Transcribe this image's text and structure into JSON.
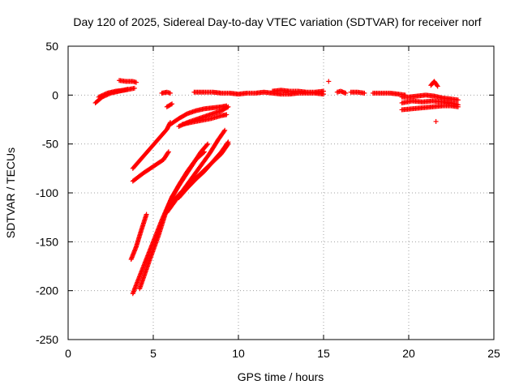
{
  "chart_data": {
    "type": "scatter",
    "title": "Day 120 of 2025, Sidereal Day-to-day VTEC variation (SDTVAR) for receiver norf",
    "xlabel": "GPS time / hours",
    "ylabel": "SDTVAR / TECUs",
    "xlim": [
      0,
      25
    ],
    "ylim": [
      -250,
      50
    ],
    "xticks": [
      0,
      5,
      10,
      15,
      20,
      25
    ],
    "yticks": [
      -250,
      -200,
      -150,
      -100,
      -50,
      0,
      50
    ],
    "grid": true,
    "marker": "+",
    "color": "#ff0000",
    "segments": [
      {
        "x": [
          1.6,
          2.0,
          2.5,
          3.0,
          3.5
        ],
        "y": [
          -8,
          -2,
          2,
          4,
          6
        ]
      },
      {
        "x": [
          1.8,
          2.3,
          2.8,
          3.3,
          3.9
        ],
        "y": [
          -2,
          2,
          4,
          5,
          7
        ]
      },
      {
        "x": [
          3.0,
          3.4,
          3.8,
          4.0
        ],
        "y": [
          15,
          14,
          14,
          13
        ]
      },
      {
        "x": [
          5.5,
          5.8,
          6.0
        ],
        "y": [
          2,
          3,
          2
        ]
      },
      {
        "x": [
          5.8,
          6.1
        ],
        "y": [
          -12,
          -9
        ]
      },
      {
        "x": [
          7.4,
          8.0,
          8.5,
          9.0,
          9.5,
          10.0,
          10.5,
          11.0,
          11.5,
          12.0,
          12.5,
          13.0,
          13.5,
          14.0,
          14.5,
          15.0
        ],
        "y": [
          3,
          3,
          3,
          2,
          2,
          1,
          2,
          2,
          3,
          2,
          1,
          1,
          2,
          2,
          2,
          1
        ]
      },
      {
        "x": [
          12.0,
          12.5,
          13.0,
          13.5,
          14.0,
          14.5,
          15.0
        ],
        "y": [
          4,
          5,
          4,
          4,
          3,
          3,
          4
        ]
      },
      {
        "x": [
          15.3
        ],
        "y": [
          14
        ]
      },
      {
        "x": [
          15.8,
          16.0,
          16.3
        ],
        "y": [
          3,
          4,
          2
        ]
      },
      {
        "x": [
          16.6,
          17.0,
          17.4
        ],
        "y": [
          3,
          3,
          2
        ]
      },
      {
        "x": [
          17.9,
          18.4,
          18.9,
          19.4,
          19.8
        ],
        "y": [
          2,
          2,
          2,
          1,
          0
        ]
      },
      {
        "x": [
          19.6,
          20.0,
          20.5,
          21.0,
          21.5,
          22.0,
          22.5,
          22.9
        ],
        "y": [
          -2,
          -2,
          -1,
          0,
          -1,
          -3,
          -4,
          -5
        ]
      },
      {
        "x": [
          21.3,
          21.5,
          21.7
        ],
        "y": [
          10,
          14,
          9
        ]
      },
      {
        "x": [
          19.6,
          20.2,
          20.8,
          21.4,
          22.0,
          22.5,
          22.9
        ],
        "y": [
          -8,
          -6,
          -7,
          -6,
          -7,
          -8,
          -10
        ]
      },
      {
        "x": [
          19.6,
          20.2,
          20.8,
          21.4,
          22.0,
          22.5,
          22.9
        ],
        "y": [
          -15,
          -14,
          -13,
          -12,
          -11,
          -11,
          -12
        ]
      },
      {
        "x": [
          21.6
        ],
        "y": [
          -27
        ]
      },
      {
        "x": [
          3.8,
          4.3,
          4.8,
          5.3,
          5.8,
          6.0
        ],
        "y": [
          -75,
          -65,
          -55,
          -45,
          -35,
          -28
        ]
      },
      {
        "x": [
          3.8,
          4.4,
          5.0,
          5.6,
          5.9
        ],
        "y": [
          -88,
          -80,
          -73,
          -66,
          -58
        ]
      },
      {
        "x": [
          6.0,
          6.5,
          7.0,
          7.5,
          8.0,
          8.5,
          9.0,
          9.3
        ],
        "y": [
          -30,
          -24,
          -19,
          -16,
          -14,
          -13,
          -12,
          -11
        ]
      },
      {
        "x": [
          6.5,
          7.0,
          7.5,
          8.0,
          8.5,
          9.0,
          9.4
        ],
        "y": [
          -32,
          -28,
          -25,
          -22,
          -19,
          -16,
          -12
        ]
      },
      {
        "x": [
          6.7,
          7.2,
          7.8,
          8.4,
          9.0,
          9.3
        ],
        "y": [
          -30,
          -28,
          -26,
          -24,
          -21,
          -20
        ]
      },
      {
        "x": [
          3.7,
          4.0,
          4.3,
          4.6
        ],
        "y": [
          -168,
          -155,
          -138,
          -122
        ]
      },
      {
        "x": [
          3.8,
          4.5,
          5.0,
          5.5,
          6.0,
          6.5,
          7.0,
          7.5,
          8.0
        ],
        "y": [
          -203,
          -172,
          -150,
          -128,
          -108,
          -92,
          -78,
          -66,
          -58
        ]
      },
      {
        "x": [
          4.2,
          4.8,
          5.3,
          5.7,
          6.1,
          6.6,
          7.2,
          7.8,
          8.2
        ],
        "y": [
          -198,
          -168,
          -144,
          -122,
          -104,
          -90,
          -74,
          -58,
          -50
        ]
      },
      {
        "x": [
          5.8,
          6.3,
          6.8,
          7.3,
          7.8,
          8.3,
          8.8,
          9.2
        ],
        "y": [
          -120,
          -108,
          -96,
          -84,
          -72,
          -60,
          -46,
          -36
        ]
      },
      {
        "x": [
          6.0,
          6.6,
          7.2,
          7.8,
          8.4,
          9.0,
          9.4
        ],
        "y": [
          -112,
          -100,
          -90,
          -80,
          -70,
          -60,
          -50
        ]
      },
      {
        "x": [
          6.5,
          7.0,
          7.5,
          8.0,
          8.5,
          9.0,
          9.4
        ],
        "y": [
          -105,
          -95,
          -86,
          -78,
          -68,
          -58,
          -48
        ]
      }
    ]
  }
}
